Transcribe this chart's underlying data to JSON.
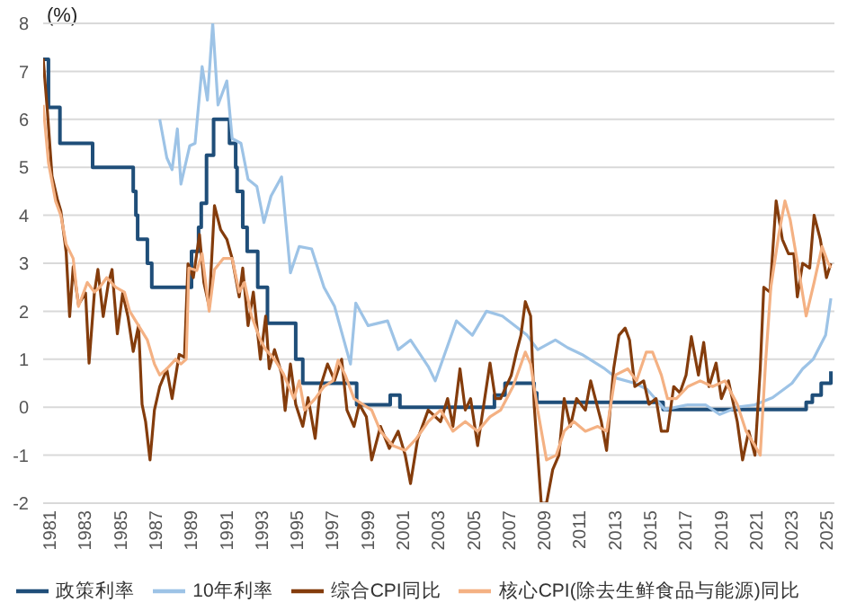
{
  "chart_data": {
    "type": "line",
    "ylabel": "(%)",
    "xlim": [
      1981,
      2025.8
    ],
    "xticks": [
      1981,
      1983,
      1985,
      1987,
      1989,
      1991,
      1993,
      1995,
      1997,
      1999,
      2001,
      2003,
      2005,
      2007,
      2009,
      2011,
      2013,
      2015,
      2017,
      2019,
      2021,
      2023,
      2025
    ],
    "ylim": [
      -2,
      8
    ],
    "yticks": [
      -2,
      -1,
      0,
      1,
      2,
      3,
      4,
      5,
      6,
      7,
      8
    ],
    "grid": "y",
    "legend": "bottom",
    "marker": "none",
    "line_style": "solid",
    "series": [
      {
        "name": "政策利率",
        "type": "step",
        "color": "#1f4e79",
        "x": [
          1981.0,
          1981.3,
          1981.95,
          1983.8,
          1986.1,
          1986.25,
          1986.35,
          1986.9,
          1987.15,
          1989.4,
          1989.8,
          1989.95,
          1990.25,
          1990.65,
          1991.55,
          1991.9,
          1991.98,
          1992.3,
          1992.55,
          1993.15,
          1993.7,
          1995.3,
          1995.7,
          1998.75,
          2000.65,
          2001.2,
          2006.55,
          2007.15,
          2008.8,
          2008.95,
          2016.1,
          2024.2,
          2024.55,
          2025.05,
          2025.6
        ],
        "values": [
          7.25,
          6.25,
          5.5,
          5.0,
          4.5,
          4.0,
          3.5,
          3.0,
          2.5,
          3.25,
          3.75,
          4.25,
          5.25,
          6.0,
          5.5,
          5.0,
          4.5,
          3.75,
          3.25,
          2.5,
          1.75,
          1.0,
          0.5,
          0.05,
          0.25,
          0.0,
          0.25,
          0.5,
          0.3,
          0.1,
          -0.05,
          0.1,
          0.25,
          0.5,
          0.75
        ]
      },
      {
        "name": "10年利率",
        "color": "#9dc3e6",
        "x": [
          1987.6,
          1988.0,
          1988.3,
          1988.6,
          1988.8,
          1989.3,
          1989.6,
          1990.0,
          1990.3,
          1990.6,
          1990.9,
          1991.4,
          1991.7,
          1992.2,
          1992.6,
          1993.1,
          1993.5,
          1993.9,
          1994.5,
          1995.0,
          1995.5,
          1996.2,
          1996.9,
          1997.5,
          1998.4,
          1998.7,
          1999.4,
          2000.5,
          2001.1,
          2001.8,
          2002.8,
          2003.2,
          2004.4,
          2005.3,
          2006.1,
          2007.0,
          2008.4,
          2009.0,
          2010.0,
          2010.7,
          2011.5,
          2012.8,
          2013.5,
          2014.5,
          2015.2,
          2016.2,
          2017.5,
          2018.5,
          2019.3,
          2020.3,
          2021.3,
          2022.3,
          2023.4,
          2024.0,
          2024.6,
          2025.3,
          2025.6
        ],
        "values": [
          6.0,
          5.2,
          4.95,
          5.8,
          4.65,
          5.45,
          5.5,
          7.1,
          6.4,
          8.0,
          6.3,
          6.8,
          5.6,
          5.5,
          4.75,
          4.6,
          3.85,
          4.4,
          4.8,
          2.8,
          3.35,
          3.3,
          2.5,
          2.1,
          0.9,
          2.17,
          1.7,
          1.8,
          1.2,
          1.4,
          0.85,
          0.55,
          1.8,
          1.5,
          2.0,
          1.9,
          1.5,
          1.2,
          1.4,
          1.24,
          1.1,
          0.8,
          0.6,
          0.5,
          0.37,
          -0.05,
          0.05,
          0.05,
          -0.15,
          0.0,
          0.05,
          0.2,
          0.5,
          0.8,
          1.0,
          1.5,
          2.27
        ]
      },
      {
        "name": "综合CPI同比",
        "color": "#843c0c",
        "x": [
          1981.0,
          1981.24,
          1981.5,
          1981.8,
          1982.0,
          1982.3,
          1982.5,
          1982.7,
          1983.0,
          1983.4,
          1983.6,
          1983.9,
          1984.1,
          1984.4,
          1984.7,
          1984.9,
          1985.2,
          1985.5,
          1985.8,
          1986.1,
          1986.4,
          1986.6,
          1986.8,
          1987.05,
          1987.3,
          1987.6,
          1988.0,
          1988.3,
          1988.7,
          1989.0,
          1989.2,
          1989.5,
          1989.85,
          1990.1,
          1990.4,
          1990.7,
          1991.05,
          1991.4,
          1991.7,
          1992.1,
          1992.3,
          1992.6,
          1992.9,
          1993.3,
          1993.6,
          1993.8,
          1994.1,
          1994.5,
          1994.7,
          1995.0,
          1995.3,
          1995.7,
          1996.0,
          1996.4,
          1996.7,
          1997.1,
          1997.5,
          1997.9,
          1998.2,
          1998.6,
          1998.9,
          1999.3,
          1999.6,
          2000.1,
          2000.6,
          2001.1,
          2001.5,
          2001.8,
          2002.2,
          2002.8,
          2003.5,
          2003.9,
          2004.2,
          2004.6,
          2004.9,
          2005.2,
          2005.6,
          2005.9,
          2006.3,
          2006.6,
          2006.9,
          2007.5,
          2007.8,
          2008.05,
          2008.3,
          2008.6,
          2008.8,
          2009.2,
          2009.5,
          2009.85,
          2010.2,
          2010.5,
          2010.85,
          2011.2,
          2011.7,
          2012.0,
          2012.6,
          2012.9,
          2013.3,
          2013.6,
          2013.95,
          2014.2,
          2014.5,
          2015.0,
          2015.3,
          2015.7,
          2016.0,
          2016.35,
          2016.7,
          2017.05,
          2017.4,
          2017.7,
          2018.1,
          2018.4,
          2018.7,
          2019.1,
          2019.4,
          2019.8,
          2020.3,
          2020.6,
          2020.95,
          2021.3,
          2021.6,
          2021.8,
          2022.15,
          2022.5,
          2022.85,
          2023.2,
          2023.5,
          2023.7,
          2024.0,
          2024.4,
          2024.65,
          2025.0,
          2025.35,
          2025.6
        ],
        "values": [
          7.27,
          6.17,
          4.82,
          4.34,
          4.09,
          3.24,
          1.89,
          2.93,
          2.14,
          2.38,
          0.92,
          2.38,
          2.87,
          1.89,
          2.6,
          2.87,
          1.53,
          2.38,
          1.89,
          1.16,
          1.7,
          0.06,
          -0.3,
          -1.1,
          -0.06,
          0.43,
          0.79,
          0.18,
          1.1,
          1.04,
          2.99,
          2.7,
          3.6,
          2.6,
          2.1,
          4.2,
          3.7,
          3.5,
          3.1,
          2.3,
          2.9,
          1.7,
          2.4,
          1.0,
          1.9,
          0.8,
          1.2,
          0.7,
          -0.07,
          0.9,
          0.06,
          -0.4,
          0.2,
          -0.65,
          0.43,
          0.9,
          0.56,
          1.0,
          -0.06,
          -0.4,
          0.06,
          -0.2,
          -1.1,
          -0.4,
          -0.86,
          -0.5,
          -1.0,
          -1.59,
          -0.67,
          -0.06,
          -0.3,
          0.18,
          -0.4,
          0.8,
          -0.06,
          0.18,
          -0.8,
          -0.06,
          0.92,
          0.18,
          0.18,
          0.66,
          1.15,
          1.5,
          2.2,
          1.9,
          0.05,
          -2.0,
          -2.0,
          -1.3,
          -1.0,
          0.18,
          -0.4,
          0.18,
          -0.06,
          0.55,
          -0.3,
          -0.9,
          0.8,
          1.5,
          1.65,
          1.4,
          0.43,
          0.55,
          0.06,
          0.18,
          -0.5,
          -0.5,
          0.43,
          0.3,
          0.67,
          1.47,
          0.67,
          1.35,
          0.43,
          0.92,
          0.18,
          0.55,
          -0.3,
          -1.1,
          -0.5,
          -1.0,
          0.8,
          2.5,
          2.4,
          4.3,
          3.5,
          3.2,
          3.2,
          2.3,
          3.0,
          2.9,
          4.0,
          3.5,
          2.7,
          3.0
        ]
      },
      {
        "name": "核心CPI(除去生鲜食品与能源)同比",
        "color": "#f4b183",
        "x": [
          1981.0,
          1981.3,
          1981.7,
          1982.0,
          1982.3,
          1982.7,
          1983.0,
          1983.5,
          1983.9,
          1984.2,
          1984.6,
          1985.1,
          1985.6,
          1985.9,
          1986.4,
          1986.9,
          1987.3,
          1987.6,
          1988.0,
          1988.5,
          1988.8,
          1989.1,
          1989.25,
          1989.7,
          1990.0,
          1990.4,
          1990.7,
          1991.2,
          1991.7,
          1992.1,
          1992.4,
          1992.8,
          1993.3,
          1993.6,
          1994.1,
          1994.6,
          1995.2,
          1995.5,
          1995.8,
          1996.4,
          1996.9,
          1997.4,
          1997.7,
          1998.1,
          1998.6,
          1999.1,
          1999.6,
          2000.1,
          2000.8,
          2001.5,
          2002.1,
          2002.8,
          2003.5,
          2004.2,
          2004.9,
          2005.6,
          2006.3,
          2006.9,
          2007.6,
          2008.3,
          2008.6,
          2009.0,
          2009.5,
          2010.05,
          2010.5,
          2011.05,
          2011.7,
          2012.4,
          2012.9,
          2013.4,
          2014.1,
          2014.6,
          2015.15,
          2015.5,
          2016.0,
          2016.35,
          2016.85,
          2017.5,
          2018.2,
          2018.9,
          2019.6,
          2020.3,
          2020.8,
          2021.3,
          2021.6,
          2021.9,
          2022.2,
          2022.65,
          2023.0,
          2023.3,
          2023.85,
          2024.2,
          2024.65,
          2025.1,
          2025.45,
          2025.6
        ],
        "values": [
          6.3,
          5.1,
          4.3,
          4.0,
          3.4,
          3.1,
          2.1,
          2.6,
          2.4,
          2.5,
          2.7,
          2.5,
          2.4,
          2.0,
          1.7,
          1.4,
          0.9,
          0.67,
          0.8,
          1.0,
          0.9,
          1.0,
          2.9,
          2.85,
          3.2,
          2.0,
          2.87,
          3.1,
          3.1,
          2.4,
          2.6,
          1.9,
          1.4,
          1.2,
          1.0,
          0.7,
          0.18,
          0.55,
          -0.06,
          0.18,
          0.43,
          0.55,
          0.98,
          0.67,
          0.18,
          0.06,
          -0.06,
          -0.5,
          -0.8,
          -0.9,
          -0.67,
          -0.3,
          -0.06,
          -0.5,
          -0.3,
          -0.5,
          -0.2,
          -0.06,
          0.43,
          1.15,
          0.9,
          -0.06,
          -1.1,
          -1.0,
          -0.5,
          -0.3,
          -0.5,
          -0.4,
          -0.5,
          0.67,
          0.8,
          0.55,
          1.15,
          1.15,
          0.67,
          0.18,
          0.18,
          0.43,
          0.55,
          0.43,
          0.55,
          0.06,
          -0.5,
          -0.8,
          -1.0,
          0.92,
          2.5,
          3.6,
          4.3,
          3.9,
          2.7,
          1.9,
          2.6,
          3.35,
          3.0,
          2.9
        ]
      }
    ]
  }
}
